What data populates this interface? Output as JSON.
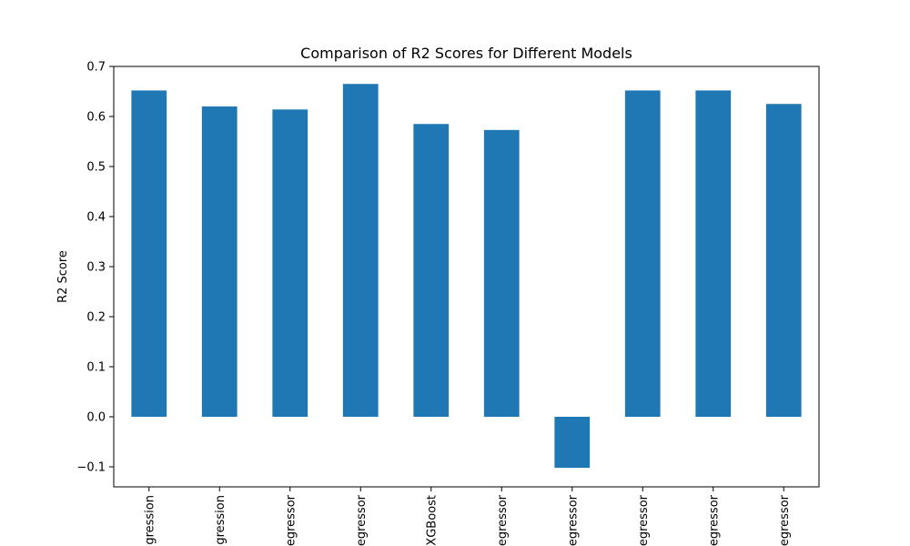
{
  "chart_data": {
    "type": "bar",
    "title": "Comparison of R2 Scores for Different Models",
    "xlabel": "",
    "ylabel": "R2 Score",
    "categories": [
      "gression",
      "gression",
      "egressor",
      "egressor",
      "XGBoost",
      "egressor",
      "egressor",
      "egressor",
      "egressor",
      "egressor"
    ],
    "values": [
      0.652,
      0.62,
      0.614,
      0.665,
      0.585,
      0.573,
      -0.102,
      0.652,
      0.652,
      0.625
    ],
    "ylim": [
      -0.14,
      0.7
    ],
    "yticks": [
      -0.1,
      0.0,
      0.1,
      0.2,
      0.3,
      0.4,
      0.5,
      0.6,
      0.7
    ],
    "ytick_labels": [
      "−0.1",
      "0.0",
      "0.1",
      "0.2",
      "0.3",
      "0.4",
      "0.5",
      "0.6",
      "0.7"
    ],
    "bar_color": "#1f77b4",
    "grid": false,
    "legend": "none"
  }
}
